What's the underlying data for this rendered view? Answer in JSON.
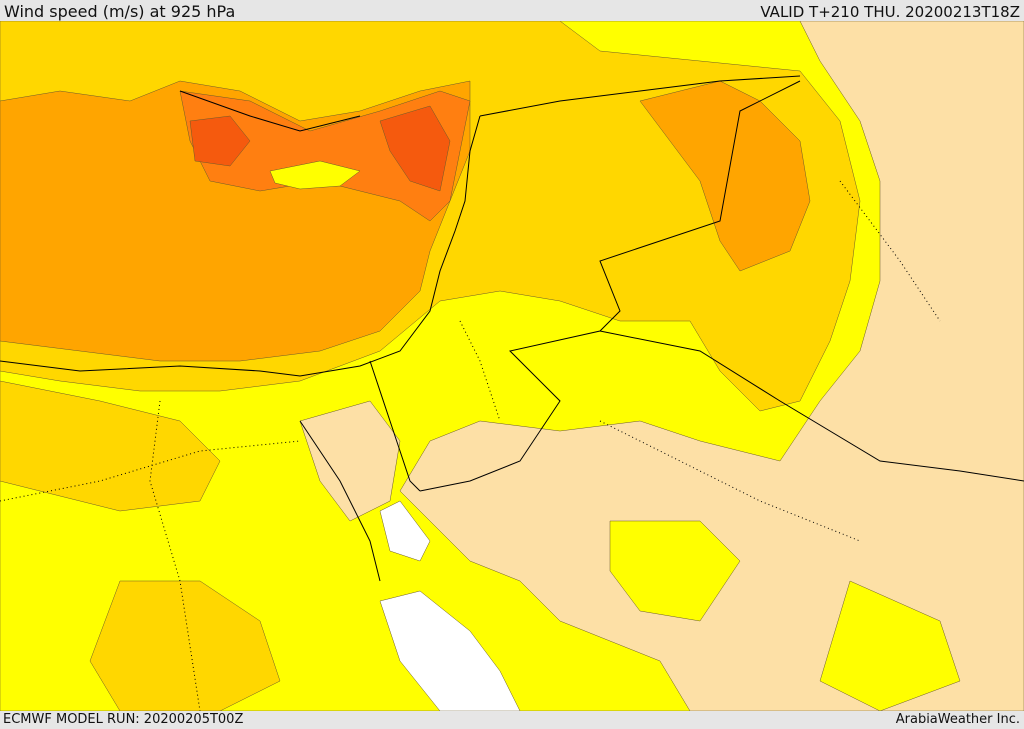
{
  "header": {
    "title": "Wind speed (m/s) at 925 hPa",
    "valid": "VALID T+210 THU. 20200213T18Z"
  },
  "footer": {
    "model_run": "ECMWF MODEL RUN: 20200205T00Z",
    "credit": "ArabiaWeather Inc."
  },
  "colors": {
    "very_light": "#fde0a6",
    "light": "#ffff00",
    "moderate": "#ffd700",
    "strong": "#ffa500",
    "stronger": "#ff7f11",
    "strongest": "#f55a0e",
    "calm": "#ffffff",
    "border": "#000000"
  }
}
